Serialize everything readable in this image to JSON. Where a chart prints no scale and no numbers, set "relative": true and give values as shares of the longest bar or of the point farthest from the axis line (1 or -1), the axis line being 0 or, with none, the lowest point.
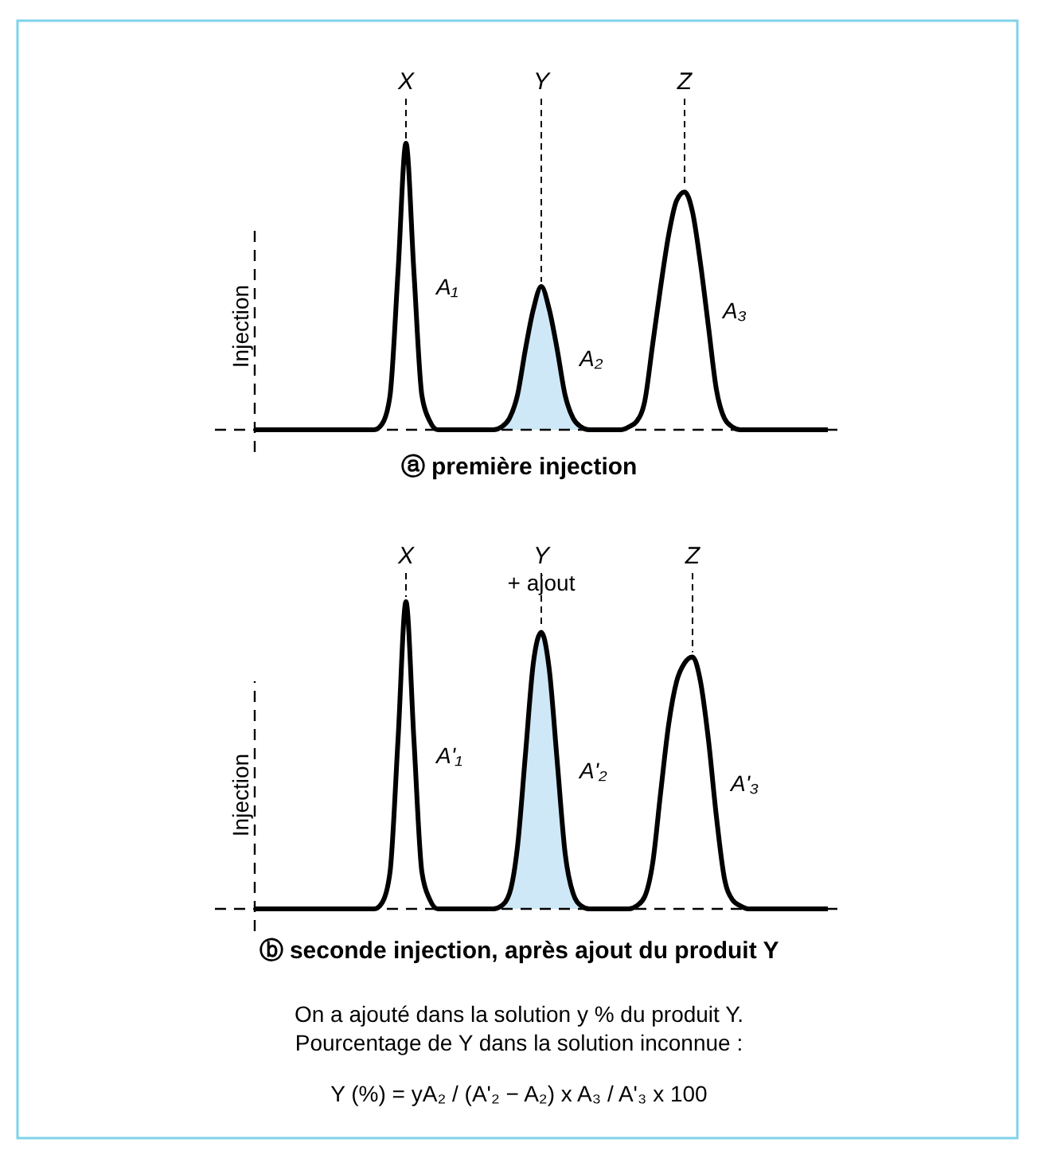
{
  "chart_data": [
    {
      "type": "line",
      "title": "ⓐ première injection",
      "ylabel": "Injection",
      "relative": true,
      "categories": [
        null,
        null,
        null,
        null,
        null,
        null,
        null,
        null,
        null,
        null,
        null,
        null,
        null,
        null,
        null,
        null,
        null,
        null,
        null,
        "X",
        null,
        null,
        null,
        null,
        null,
        null,
        null,
        null,
        null,
        null,
        null,
        null,
        null,
        null,
        null,
        null,
        "Y",
        null,
        null,
        null,
        null,
        null,
        null,
        null,
        null,
        null,
        null,
        null,
        null,
        null,
        null,
        null,
        null,
        null,
        "Z",
        null,
        null,
        null,
        null,
        null,
        null,
        null,
        null,
        null,
        null,
        null,
        null,
        null,
        null,
        null,
        null,
        null,
        null
      ],
      "series": [
        {
          "type": "line",
          "color": "#000000",
          "values": [
            0,
            0,
            0,
            0,
            0,
            0,
            0,
            0,
            0,
            0,
            0,
            0,
            0,
            0,
            0,
            0,
            0.02,
            0.12,
            0.55,
            1,
            0.55,
            0.12,
            0.03,
            0,
            0,
            0,
            0,
            0,
            0,
            0,
            0,
            0.01,
            0.04,
            0.12,
            0.28,
            0.42,
            0.5,
            0.42,
            0.28,
            0.12,
            0.04,
            0.01,
            0,
            0,
            0,
            0,
            0,
            0.01,
            0.03,
            0.1,
            0.3,
            0.5,
            0.68,
            0.8,
            0.83,
            0.76,
            0.58,
            0.36,
            0.14,
            0.04,
            0.01,
            0,
            0,
            0,
            0,
            0,
            0,
            0,
            0,
            0,
            0,
            0,
            0
          ]
        },
        {
          "type": "area",
          "color": "#cfe8f7",
          "values": [
            null,
            null,
            null,
            null,
            null,
            null,
            null,
            null,
            null,
            null,
            null,
            null,
            null,
            null,
            null,
            null,
            null,
            null,
            null,
            null,
            null,
            null,
            null,
            null,
            null,
            null,
            null,
            null,
            null,
            null,
            null,
            0.01,
            0.04,
            0.12,
            0.28,
            0.42,
            0.5,
            0.42,
            0.28,
            0.12,
            0.04,
            0.01,
            null,
            null,
            null,
            null,
            null,
            null,
            null,
            null,
            null,
            null,
            null,
            null,
            null,
            null,
            null,
            null,
            null,
            null,
            null,
            null,
            null,
            null,
            null,
            null,
            null,
            null,
            null,
            null,
            null,
            null,
            null
          ]
        }
      ],
      "annotations": [
        "A₁",
        "A₂",
        "A₃"
      ]
    },
    {
      "type": "line",
      "title": "ⓑ seconde injection, après ajout du produit Y",
      "ylabel": "Injection",
      "relative": true,
      "categories": [
        null,
        null,
        null,
        null,
        null,
        null,
        null,
        null,
        null,
        null,
        null,
        null,
        null,
        null,
        null,
        null,
        null,
        null,
        null,
        "X",
        null,
        null,
        null,
        null,
        null,
        null,
        null,
        null,
        null,
        null,
        null,
        null,
        null,
        null,
        null,
        null,
        "Y",
        null,
        null,
        null,
        null,
        null,
        null,
        null,
        null,
        null,
        null,
        null,
        null,
        null,
        null,
        null,
        null,
        null,
        null,
        "Z",
        null,
        null,
        null,
        null,
        null,
        null,
        null,
        null,
        null,
        null,
        null,
        null,
        null,
        null,
        null,
        null,
        null
      ],
      "series": [
        {
          "type": "line",
          "color": "#000000",
          "values": [
            0,
            0,
            0,
            0,
            0,
            0,
            0,
            0,
            0,
            0,
            0,
            0,
            0,
            0,
            0,
            0,
            0.02,
            0.12,
            0.55,
            1,
            0.55,
            0.12,
            0.03,
            0,
            0,
            0,
            0,
            0,
            0,
            0,
            0,
            0.01,
            0.05,
            0.2,
            0.5,
            0.8,
            0.9,
            0.78,
            0.48,
            0.18,
            0.05,
            0.01,
            0,
            0,
            0,
            0,
            0,
            0,
            0.01,
            0.04,
            0.15,
            0.38,
            0.6,
            0.74,
            0.8,
            0.82,
            0.74,
            0.55,
            0.3,
            0.1,
            0.03,
            0.01,
            0,
            0,
            0,
            0,
            0,
            0,
            0,
            0,
            0,
            0,
            0
          ]
        },
        {
          "type": "area",
          "color": "#cfe8f7",
          "values": [
            null,
            null,
            null,
            null,
            null,
            null,
            null,
            null,
            null,
            null,
            null,
            null,
            null,
            null,
            null,
            null,
            null,
            null,
            null,
            null,
            null,
            null,
            null,
            null,
            null,
            null,
            null,
            null,
            null,
            null,
            null,
            0.01,
            0.05,
            0.2,
            0.5,
            0.8,
            0.9,
            0.78,
            0.48,
            0.18,
            0.05,
            0.01,
            null,
            null,
            null,
            null,
            null,
            null,
            null,
            null,
            null,
            null,
            null,
            null,
            null,
            null,
            null,
            null,
            null,
            null,
            null,
            null,
            null,
            null,
            null,
            null,
            null,
            null,
            null,
            null,
            null,
            null,
            null
          ]
        }
      ],
      "annotations": [
        "A'₁",
        "A'₂",
        "A'₃",
        {
          "text": "+ ajout",
          "x": "Y"
        },
        "On a ajouté dans la solution y % du produit Y.",
        "Pourcentage de Y dans la solution inconnue :",
        "Y (%) = yA₂ / (A'₂ − A₂) x A₃ / A'₃ x 100"
      ]
    }
  ]
}
